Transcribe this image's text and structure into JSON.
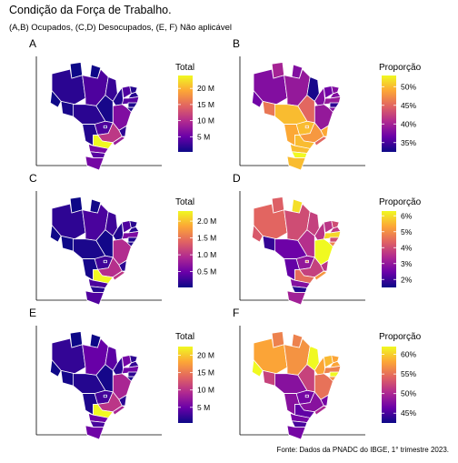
{
  "title": "Condição da Força de Trabalho.",
  "subtitle": "(A,B) Ocupados, (C,D) Desocupados, (E, F) Não aplicável",
  "caption": "Fonte: Dados da PNADC do IBGE, 1° trimestre 2023.",
  "colors": {
    "scale": [
      "#0d0887",
      "#6a00a8",
      "#b12a90",
      "#e16462",
      "#fca636",
      "#f0f921"
    ],
    "border": "#ffffff",
    "axis": "#000000"
  },
  "chart_data": [
    {
      "type": "heatmap",
      "panel": "A",
      "legend_title": "Total",
      "legend_ticks": [
        "5 M",
        "10 M",
        "15 M",
        "20 M"
      ],
      "values": {
        "AC": 0.4,
        "AM": 1.8,
        "RR": 0.3,
        "PA": 3.6,
        "AP": 0.4,
        "TO": 0.8,
        "MA": 2.5,
        "PI": 1.4,
        "CE": 3.7,
        "RN": 1.5,
        "PB": 1.6,
        "PE": 4.0,
        "AL": 1.1,
        "SE": 1.0,
        "BA": 6.5,
        "MG": 10.9,
        "ES": 2.0,
        "RJ": 8.1,
        "SP": 24.0,
        "PR": 5.9,
        "SC": 4.1,
        "RS": 5.8,
        "MS": 1.4,
        "MT": 1.8,
        "GO": 3.6,
        "DF": 1.6,
        "RO": 0.9
      }
    },
    {
      "type": "heatmap",
      "panel": "B",
      "legend_title": "Proporção",
      "legend_ticks": [
        "35%",
        "40%",
        "45%",
        "50%"
      ],
      "values": {
        "AC": 37,
        "AM": 38,
        "RR": 40,
        "PA": 39,
        "AP": 38,
        "TO": 45,
        "MA": 33,
        "PI": 38,
        "CE": 37,
        "RN": 38,
        "PB": 38,
        "PE": 39,
        "AL": 34,
        "SE": 38,
        "BA": 39,
        "MG": 48,
        "ES": 49,
        "RJ": 45,
        "SP": 50,
        "PR": 50,
        "SC": 53,
        "RS": 50,
        "MS": 49,
        "MT": 50,
        "GO": 50,
        "DF": 49,
        "RO": 46
      }
    },
    {
      "type": "heatmap",
      "panel": "C",
      "legend_title": "Total",
      "legend_ticks": [
        "0.5 M",
        "1.0 M",
        "1.5 M",
        "2.0 M"
      ],
      "values": {
        "AC": 0.04,
        "AM": 0.19,
        "RR": 0.03,
        "PA": 0.33,
        "AP": 0.05,
        "TO": 0.06,
        "MA": 0.27,
        "PI": 0.13,
        "CE": 0.35,
        "RN": 0.16,
        "PB": 0.15,
        "PE": 0.6,
        "AL": 0.12,
        "SE": 0.14,
        "BA": 0.95,
        "MG": 0.98,
        "ES": 0.17,
        "RJ": 1.05,
        "SP": 2.3,
        "PR": 0.33,
        "SC": 0.14,
        "RS": 0.36,
        "MS": 0.07,
        "MT": 0.1,
        "GO": 0.28,
        "DF": 0.17,
        "RO": 0.04
      }
    },
    {
      "type": "heatmap",
      "panel": "D",
      "legend_title": "Proporção",
      "legend_ticks": [
        "2%",
        "3%",
        "4%",
        "5%",
        "6%"
      ],
      "values": {
        "AC": 4.2,
        "AM": 4.4,
        "RR": 4.3,
        "PA": 4.0,
        "AP": 6.0,
        "TO": 3.5,
        "MA": 3.8,
        "PI": 3.6,
        "CE": 3.6,
        "RN": 4.0,
        "PB": 3.7,
        "PE": 5.9,
        "AL": 4.0,
        "SE": 4.8,
        "BA": 6.3,
        "MG": 3.8,
        "ES": 3.6,
        "RJ": 5.1,
        "SP": 4.5,
        "PR": 2.8,
        "SC": 1.7,
        "RS": 3.2,
        "MS": 2.4,
        "MT": 2.5,
        "GO": 3.0,
        "DF": 4.5,
        "RO": 1.9
      }
    },
    {
      "type": "heatmap",
      "panel": "E",
      "legend_title": "Total",
      "legend_ticks": [
        "5 M",
        "10 M",
        "15 M",
        "20 M"
      ],
      "values": {
        "AC": 0.6,
        "AM": 2.3,
        "RR": 0.5,
        "PA": 4.8,
        "AP": 0.5,
        "TO": 0.9,
        "MA": 4.2,
        "PI": 1.9,
        "CE": 5.5,
        "RN": 2.0,
        "PB": 2.4,
        "PE": 5.3,
        "AL": 2.0,
        "SE": 1.3,
        "BA": 8.8,
        "MG": 10.2,
        "ES": 1.9,
        "RJ": 8.8,
        "SP": 22.5,
        "PR": 5.1,
        "SC": 3.3,
        "RS": 5.2,
        "MS": 1.3,
        "MT": 1.6,
        "GO": 3.1,
        "DF": 1.4,
        "RO": 0.9
      }
    },
    {
      "type": "heatmap",
      "panel": "F",
      "legend_title": "Proporção",
      "legend_ticks": [
        "45%",
        "50%",
        "55%",
        "60%"
      ],
      "values": {
        "AC": 62,
        "AM": 58,
        "RR": 56,
        "PA": 57,
        "AP": 56,
        "TO": 52,
        "MA": 62,
        "PI": 58,
        "CE": 59,
        "RN": 58,
        "PB": 58,
        "PE": 56,
        "AL": 62,
        "SE": 57,
        "BA": 55,
        "MG": 48,
        "ES": 47,
        "RJ": 50,
        "SP": 46,
        "PR": 47,
        "SC": 45,
        "RS": 47,
        "MS": 48,
        "MT": 48,
        "GO": 47,
        "DF": 47,
        "RO": 52
      }
    }
  ]
}
